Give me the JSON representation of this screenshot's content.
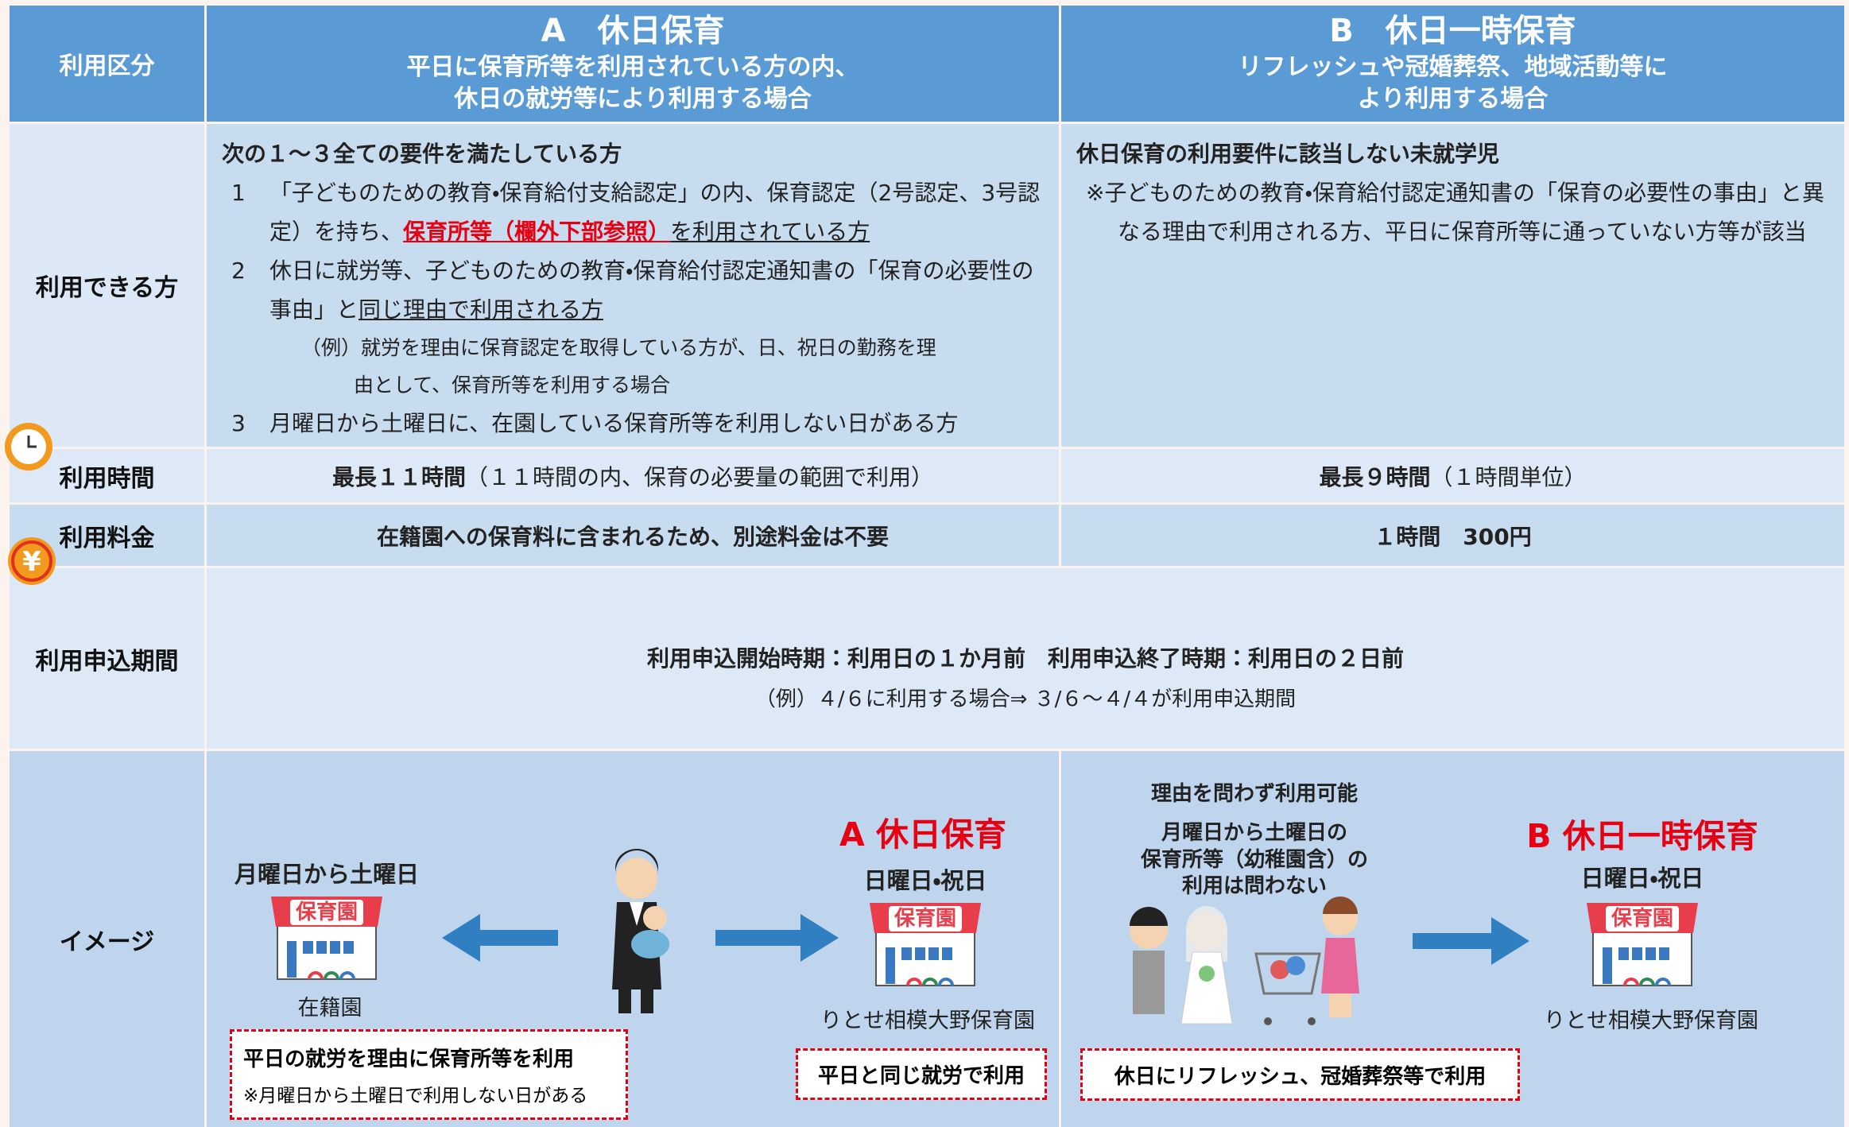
{
  "header": {
    "category_label": "利用区分",
    "a_title": "A　休日保育",
    "a_subtitle": [
      "平日に保育所等を利用されている方の内、",
      "休日の就労等により利用する場合"
    ],
    "b_title": "B　休日一時保育",
    "b_subtitle": [
      "リフレッシュや冠婚葬祭、地域活動等に",
      "より利用する場合"
    ]
  },
  "eligible": {
    "label": "利用できる方",
    "a_heading": "次の１～３全ての要件を満たしている方",
    "a_items": [
      {
        "number": "1",
        "parts": [
          "「子どものための教育・保育給付支給認定」の内、保育認定（2号認定、3号認定）を持ち、",
          "保育所等（欄外下部参照）",
          "を利用されている方"
        ]
      },
      {
        "number": "2",
        "parts": [
          "休日に就労等、子どものための教育・保育給付認定通知書の「保育の必要性の事由」と",
          "同じ理由で利用される方"
        ]
      },
      {
        "number": "3",
        "parts": [
          "月曜日から土曜日に、在園している保育所等を利用しない日がある方"
        ]
      }
    ],
    "a_example": "（例）就労を理由に保育認定を取得している方が、日、祝日の勤務を理由として、保育所等を利用する場合",
    "b_heading": "休日保育の利用要件に該当しない未就学児",
    "b_note": "※子どものための教育・保育給付認定通知書の「保育の必要性の事由」と異なる理由で利用される方、平日に保育所等に通っていない方等が該当"
  },
  "hours": {
    "label": "利用時間",
    "a_main": "最長１１時間",
    "a_note": "（１１時間の内、保育の必要量の範囲で利用）",
    "b_main": "最長９時間",
    "b_note": "（１時間単位）"
  },
  "fee": {
    "label": "利用料金",
    "icon": "¥",
    "a": "在籍園への保育料に含まれるため、別途料金は不要",
    "b": "１時間　300円"
  },
  "application": {
    "label": "利用申込期間",
    "main": "利用申込開始時期：利用日の１か月前　利用申込終了時期：利用日の２日前",
    "example": "（例）４/６に利用する場合⇒ ３/６～４/４が利用申込期間"
  },
  "image": {
    "label": "イメージ",
    "building_sign": "保育園",
    "a_weekday": "月曜日から土曜日",
    "a_current": "在籍園",
    "a_title": "A 休日保育",
    "a_holiday": "日曜日・祝日",
    "a_facility": "りとせ相模大野保育園",
    "a_box1": "平日の就労を理由に保育所等を利用",
    "a_box1_note": "※月曜日から土曜日で利用しない日がある",
    "a_box2": "平日と同じ就労で利用",
    "b_reason": "理由を問わず利用可能",
    "b_condition": [
      "月曜日から土曜日の",
      "保育所等（幼稚園含）の",
      "利用は問わない"
    ],
    "b_title": "B 休日一時保育",
    "b_holiday": "日曜日・祝日",
    "b_facility": "りとせ相模大野保育園",
    "b_box": "休日にリフレッシュ、冠婚葬祭等で利用"
  }
}
